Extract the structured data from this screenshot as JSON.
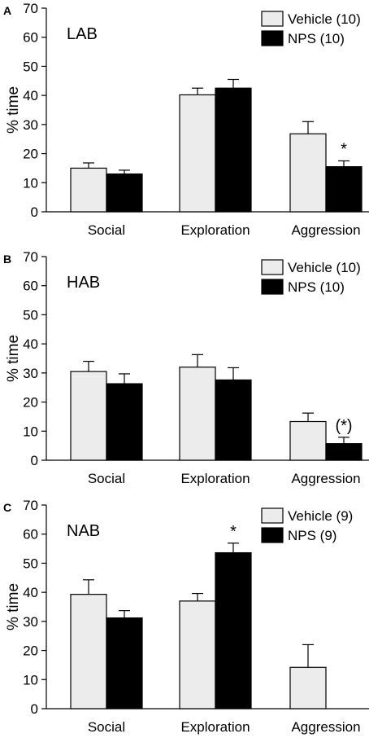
{
  "colors": {
    "vehicle": "#ececec",
    "nps": "#000000"
  },
  "chart_data": [
    {
      "type": "bar",
      "letter": "A",
      "title": "LAB",
      "ylabel": "% time",
      "ylim": [
        0,
        70
      ],
      "yticks": [
        "0",
        "10",
        "20",
        "30",
        "40",
        "50",
        "60",
        "70"
      ],
      "categories": [
        "Social",
        "Exploration",
        "Aggression"
      ],
      "series": [
        {
          "name": "Vehicle (10)",
          "values": [
            15,
            40.2,
            26.8
          ],
          "errors": [
            1.8,
            2.3,
            4.2
          ]
        },
        {
          "name": "NPS (10)",
          "values": [
            13,
            42.5,
            15.5
          ],
          "errors": [
            1.3,
            3.0,
            2.0
          ]
        }
      ],
      "annotations": [
        {
          "text": "*",
          "category": 2,
          "series": 1
        }
      ],
      "legend": "top-right"
    },
    {
      "type": "bar",
      "letter": "B",
      "title": "HAB",
      "ylabel": "% time",
      "ylim": [
        0,
        70
      ],
      "yticks": [
        "0",
        "10",
        "20",
        "30",
        "40",
        "50",
        "60",
        "70"
      ],
      "categories": [
        "Social",
        "Exploration",
        "Aggression"
      ],
      "series": [
        {
          "name": "Vehicle (10)",
          "values": [
            30.5,
            32,
            13.3
          ],
          "errors": [
            3.5,
            4.3,
            2.9
          ]
        },
        {
          "name": "NPS (10)",
          "values": [
            26.3,
            27.6,
            5.7
          ],
          "errors": [
            3.4,
            4.2,
            2.2
          ]
        }
      ],
      "annotations": [
        {
          "text": "(*)",
          "category": 2,
          "series": 1
        }
      ],
      "legend": "top-right"
    },
    {
      "type": "bar",
      "letter": "C",
      "title": "NAB",
      "ylabel": "% time",
      "ylim": [
        0,
        70
      ],
      "yticks": [
        "0",
        "10",
        "20",
        "30",
        "40",
        "50",
        "60",
        "70"
      ],
      "categories": [
        "Social",
        "Exploration",
        "Aggression"
      ],
      "series": [
        {
          "name": "Vehicle (9)",
          "values": [
            39.3,
            37,
            14.2
          ],
          "errors": [
            5,
            2.6,
            7.8
          ]
        },
        {
          "name": "NPS (9)",
          "values": [
            31.2,
            53.6,
            0
          ],
          "errors": [
            2.5,
            3.3,
            0
          ]
        }
      ],
      "annotations": [
        {
          "text": "*",
          "category": 1,
          "series": 1
        }
      ],
      "legend": "top-right"
    }
  ]
}
